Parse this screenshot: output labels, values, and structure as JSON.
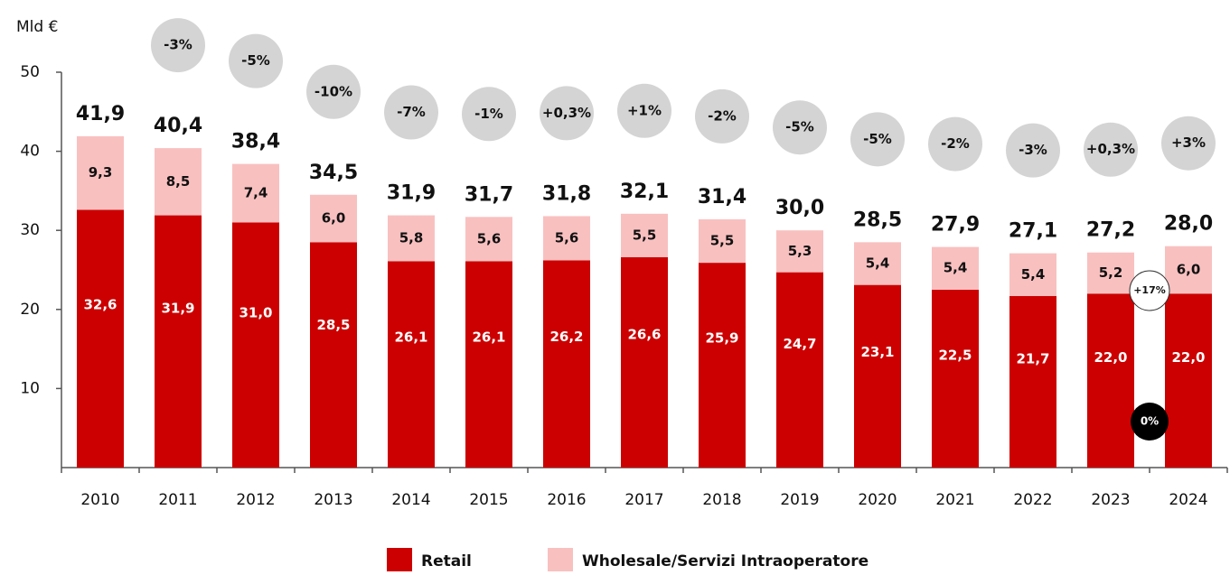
{
  "chart_data": {
    "type": "stacked_bar",
    "y_label": "Mld €",
    "categories": [
      "2010",
      "2011",
      "2012",
      "2013",
      "2014",
      "2015",
      "2016",
      "2017",
      "2018",
      "2019",
      "2020",
      "2021",
      "2022",
      "2023",
      "2024"
    ],
    "series": [
      {
        "name": "Retail",
        "color": "#cc0000",
        "values": [
          32.6,
          31.9,
          31.0,
          28.5,
          26.1,
          26.1,
          26.2,
          26.6,
          25.9,
          24.7,
          23.1,
          22.5,
          21.7,
          22.0,
          22.0
        ],
        "value_labels": [
          "32,6",
          "31,9",
          "31,0",
          "28,5",
          "26,1",
          "26,1",
          "26,2",
          "26,6",
          "25,9",
          "24,7",
          "23,1",
          "22,5",
          "21,7",
          "22,0",
          "22,0"
        ]
      },
      {
        "name": "Wholesale/Servizi Intraoperatore",
        "color": "#f9c0c0",
        "values": [
          9.3,
          8.5,
          7.4,
          6.0,
          5.8,
          5.6,
          5.6,
          5.5,
          5.5,
          5.3,
          5.4,
          5.4,
          5.4,
          5.2,
          6.0
        ],
        "value_labels": [
          "9,3",
          "8,5",
          "7,4",
          "6,0",
          "5,8",
          "5,6",
          "5,6",
          "5,5",
          "5,5",
          "5,3",
          "5,4",
          "5,4",
          "5,4",
          "5,2",
          "6,0"
        ]
      }
    ],
    "totals": [
      41.9,
      40.4,
      38.4,
      34.5,
      31.9,
      31.7,
      31.8,
      32.1,
      31.4,
      30.0,
      28.5,
      27.9,
      27.1,
      27.2,
      28.0
    ],
    "total_labels": [
      "41,9",
      "40,4",
      "38,4",
      "34,5",
      "31,9",
      "31,7",
      "31,8",
      "32,1",
      "31,4",
      "30,0",
      "28,5",
      "27,9",
      "27,1",
      "27,2",
      "28,0"
    ],
    "changes": [
      null,
      -3,
      -5,
      -10,
      -7,
      -1,
      0.3,
      1,
      -2,
      -5,
      -5,
      -2,
      -3,
      0.3,
      3
    ],
    "change_labels": [
      null,
      "-3%",
      "-5%",
      "-10%",
      "-7%",
      "-1%",
      "+0,3%",
      "+1%",
      "-2%",
      "-5%",
      "-5%",
      "-2%",
      "-3%",
      "+0,3%",
      "+3%"
    ],
    "annotations": [
      {
        "text": "+17%",
        "value": 17
      },
      {
        "text": "0%",
        "value": 0
      }
    ],
    "ylim": [
      0,
      50
    ],
    "yticks": [
      10,
      20,
      30,
      40,
      50
    ],
    "legend": "bottom"
  }
}
